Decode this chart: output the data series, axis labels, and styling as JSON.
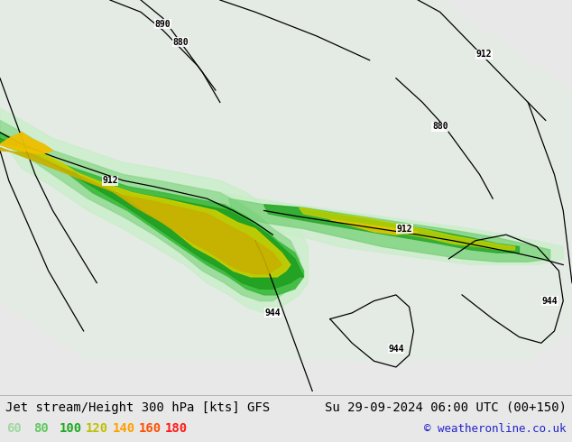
{
  "title_left": "Jet stream/Height 300 hPa [kts] GFS",
  "title_right": "Su 29-09-2024 06:00 UTC (00+150)",
  "copyright": "© weatheronline.co.uk",
  "legend_values": [
    60,
    80,
    100,
    120,
    140,
    160,
    180
  ],
  "legend_colors_hex": [
    "#a0d8a0",
    "#50c850",
    "#22aa22",
    "#d0d000",
    "#ffa500",
    "#ff5000",
    "#ff1010"
  ],
  "font_family": "monospace",
  "title_fontsize": 10,
  "legend_fontsize": 10,
  "copyright_fontsize": 9,
  "map_extent": [
    -180,
    -50,
    20,
    85
  ],
  "bg_color": "#e8e8e8",
  "land_color": "#d0d0d0",
  "ocean_color": "#dce8f0",
  "coastline_color": "#a0a0a0",
  "contour_color": "black",
  "contour_lw": 0.9
}
